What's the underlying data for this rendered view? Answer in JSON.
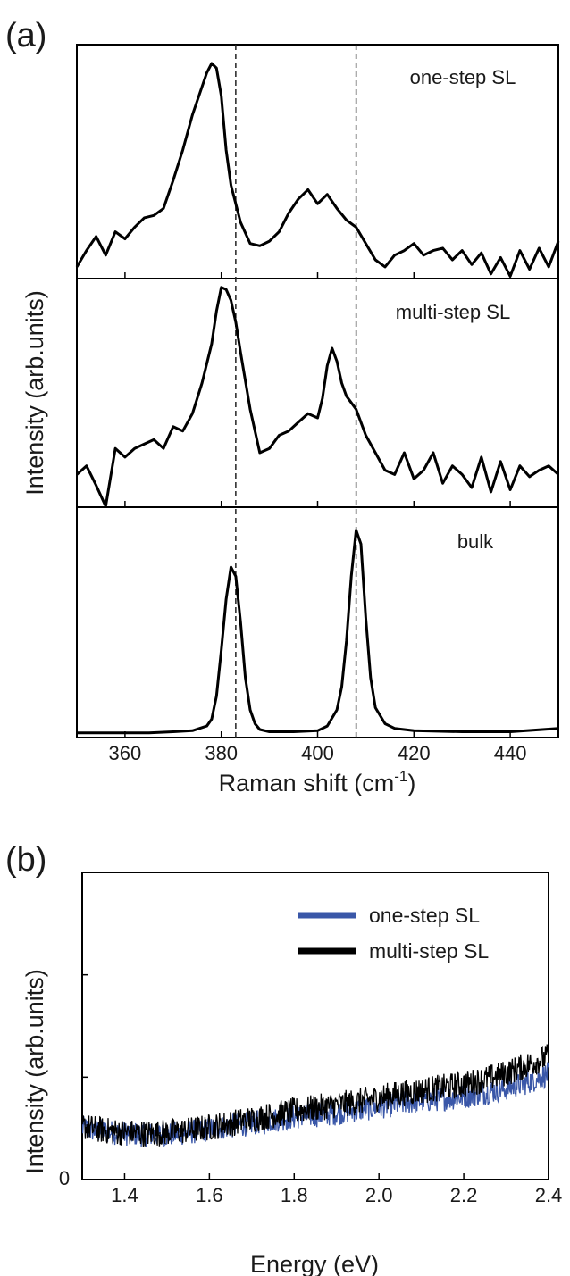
{
  "chart_data": [
    {
      "panel_label": "(a)",
      "type": "line",
      "xlabel": "Raman shift (cm",
      "xlabel_sup": "-1",
      "xlabel_end": ")",
      "ylabel": "Intensity (arb.units)",
      "xlim": [
        350,
        450
      ],
      "x_ticks": [
        360,
        380,
        400,
        420,
        440
      ],
      "reference_lines_x": [
        383,
        408
      ],
      "grid": false,
      "subplots": [
        {
          "label": "one-step SL",
          "x": [
            350,
            352,
            354,
            356,
            358,
            360,
            362,
            364,
            366,
            368,
            370,
            372,
            374,
            376,
            377,
            378,
            379,
            380,
            381,
            382,
            383,
            384,
            386,
            388,
            390,
            392,
            394,
            396,
            398,
            400,
            402,
            404,
            406,
            408,
            410,
            412,
            414,
            416,
            418,
            420,
            422,
            424,
            426,
            428,
            430,
            432,
            434,
            436,
            438,
            440,
            442,
            444,
            446,
            448,
            450
          ],
          "y": [
            0.05,
            0.12,
            0.18,
            0.1,
            0.2,
            0.17,
            0.22,
            0.26,
            0.27,
            0.3,
            0.42,
            0.55,
            0.7,
            0.82,
            0.88,
            0.92,
            0.9,
            0.78,
            0.55,
            0.4,
            0.32,
            0.24,
            0.15,
            0.14,
            0.16,
            0.2,
            0.28,
            0.34,
            0.38,
            0.32,
            0.36,
            0.3,
            0.25,
            0.22,
            0.15,
            0.08,
            0.05,
            0.1,
            0.12,
            0.15,
            0.1,
            0.12,
            0.13,
            0.08,
            0.12,
            0.06,
            0.11,
            0.02,
            0.09,
            0.01,
            0.12,
            0.04,
            0.13,
            0.05,
            0.16
          ],
          "ylim": [
            0,
            1
          ]
        },
        {
          "label": "multi-step SL",
          "x": [
            350,
            352,
            354,
            356,
            358,
            360,
            362,
            364,
            366,
            368,
            370,
            372,
            374,
            376,
            378,
            379,
            380,
            381,
            382,
            383,
            384,
            386,
            388,
            390,
            392,
            394,
            396,
            398,
            400,
            401,
            402,
            403,
            404,
            405,
            406,
            408,
            410,
            412,
            414,
            416,
            418,
            420,
            422,
            424,
            426,
            428,
            430,
            432,
            434,
            436,
            438,
            440,
            442,
            444,
            446,
            448,
            450
          ],
          "y": [
            0.1,
            0.14,
            0.05,
            -0.1,
            0.22,
            0.18,
            0.22,
            0.24,
            0.26,
            0.22,
            0.32,
            0.3,
            0.38,
            0.52,
            0.7,
            0.85,
            0.96,
            0.95,
            0.9,
            0.8,
            0.66,
            0.4,
            0.2,
            0.22,
            0.28,
            0.3,
            0.34,
            0.38,
            0.36,
            0.45,
            0.6,
            0.68,
            0.62,
            0.52,
            0.46,
            0.4,
            0.28,
            0.2,
            0.12,
            0.1,
            0.2,
            0.08,
            0.12,
            0.2,
            0.06,
            0.14,
            0.1,
            0.04,
            0.18,
            0.02,
            0.16,
            0.03,
            0.14,
            0.09,
            0.12,
            0.14,
            0.1
          ],
          "ylim": [
            -0.05,
            1
          ]
        },
        {
          "label": "bulk",
          "x": [
            350,
            355,
            360,
            365,
            370,
            374,
            377,
            378,
            379,
            380,
            381,
            382,
            383,
            384,
            385,
            386,
            387,
            388,
            390,
            395,
            400,
            402,
            404,
            405,
            406,
            407,
            408,
            409,
            410,
            411,
            412,
            414,
            416,
            420,
            430,
            440,
            450
          ],
          "y": [
            0.02,
            0.02,
            0.02,
            0.02,
            0.025,
            0.03,
            0.05,
            0.08,
            0.18,
            0.38,
            0.6,
            0.74,
            0.7,
            0.5,
            0.26,
            0.12,
            0.06,
            0.035,
            0.025,
            0.025,
            0.03,
            0.05,
            0.12,
            0.22,
            0.42,
            0.7,
            0.9,
            0.84,
            0.52,
            0.26,
            0.13,
            0.06,
            0.04,
            0.03,
            0.025,
            0.025,
            0.04
          ],
          "ylim": [
            0,
            1
          ]
        }
      ]
    },
    {
      "panel_label": "(b)",
      "type": "line",
      "xlabel": "Energy (eV)",
      "ylabel": "Intensity (arb.units)",
      "xlim": [
        1.3,
        2.4
      ],
      "x_ticks": [
        1.4,
        1.6,
        1.8,
        2.0,
        2.2,
        2.4
      ],
      "y_ticks": [
        "0"
      ],
      "ylim": [
        0,
        3
      ],
      "grid": false,
      "legend": "top-right",
      "series": [
        {
          "name": "one-step SL",
          "color": "#3a57a8",
          "noise": 0.055,
          "x": [
            1.3,
            1.35,
            1.4,
            1.45,
            1.5,
            1.55,
            1.6,
            1.65,
            1.7,
            1.75,
            1.8,
            1.85,
            1.9,
            1.95,
            2.0,
            2.05,
            2.1,
            2.15,
            2.2,
            2.25,
            2.3,
            2.35,
            2.4
          ],
          "y": [
            0.5,
            0.47,
            0.45,
            0.44,
            0.44,
            0.46,
            0.49,
            0.52,
            0.55,
            0.58,
            0.61,
            0.63,
            0.65,
            0.68,
            0.71,
            0.74,
            0.77,
            0.79,
            0.81,
            0.85,
            0.89,
            0.95,
            1.03
          ]
        },
        {
          "name": "multi-step SL",
          "color": "#000000",
          "noise": 0.06,
          "x": [
            1.3,
            1.35,
            1.4,
            1.45,
            1.5,
            1.55,
            1.6,
            1.65,
            1.7,
            1.75,
            1.8,
            1.85,
            1.9,
            1.95,
            2.0,
            2.05,
            2.1,
            2.15,
            2.2,
            2.25,
            2.3,
            2.35,
            2.4
          ],
          "y": [
            0.52,
            0.48,
            0.46,
            0.45,
            0.46,
            0.48,
            0.51,
            0.55,
            0.59,
            0.63,
            0.67,
            0.7,
            0.73,
            0.76,
            0.8,
            0.84,
            0.87,
            0.9,
            0.93,
            0.98,
            1.04,
            1.12,
            1.2
          ]
        }
      ]
    }
  ]
}
